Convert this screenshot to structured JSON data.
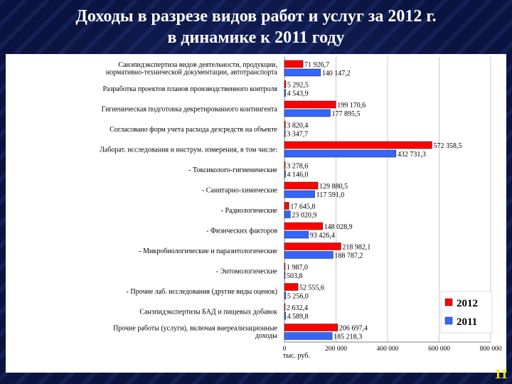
{
  "header": {
    "title_line1": "Доходы в разрезе видов работ и услуг за 2012 г.",
    "title_line2": "в динамике к 2011 году"
  },
  "page_number": "11",
  "colors": {
    "series_2012": "#ff0000",
    "series_2011": "#3366ff",
    "background": "#0b1440",
    "title": "#ffffff",
    "page_number": "#ffe600"
  },
  "chart_data": {
    "type": "bar",
    "orientation": "horizontal",
    "title": "",
    "xlabel": "тыс. руб.",
    "ylabel": "",
    "xlim": [
      0,
      800000
    ],
    "x_ticks": [
      {
        "value": 0,
        "label": "0"
      },
      {
        "value": 200000,
        "label": "200 000"
      },
      {
        "value": 400000,
        "label": "400 000"
      },
      {
        "value": 600000,
        "label": "600 000"
      },
      {
        "value": 800000,
        "label": "800 000"
      }
    ],
    "grid": true,
    "legend_position": "bottom-right",
    "categories": [
      [
        "Санэпидэкспертиза видов деятельности, продукции,",
        "нормативно-технической документации, автотранспорта"
      ],
      [
        "Разработка проектов планов производственного контроля"
      ],
      [
        "Гигиеническая подготовка декретированного контингента"
      ],
      [
        "Согласовано форм учета расхода дезсредств на объекте"
      ],
      [
        "Лаборат. исследования и инструм. измерения, в том числе:"
      ],
      [
        "- Токсиколого-гигиенические"
      ],
      [
        "- Санитарно-химические"
      ],
      [
        "-  Радиологические"
      ],
      [
        "- Физических факторов"
      ],
      [
        "- Микробиологические и паразитологические"
      ],
      [
        "- Энтомологические"
      ],
      [
        "- Прочие лаб. исследования (другие виды оценок)"
      ],
      [
        "Санэпидэкспертизы БАД и пищевых добавок"
      ],
      [
        "Прочие работы (услуги), включая внереализационные",
        "доходы"
      ]
    ],
    "series": [
      {
        "name": "2012",
        "values": [
          71926.7,
          5292.5,
          199170.6,
          3820.4,
          572358.5,
          3278.6,
          129880.5,
          17645.8,
          148028.9,
          218982.1,
          1987.0,
          52555.6,
          2632.4,
          206697.4
        ],
        "labels": [
          "71 926,7",
          "5 292,5",
          "199 170,6",
          "3 820,4",
          "572 358,5",
          "3 278,6",
          "129 880,5",
          "17 645,8",
          "148 028,9",
          "218 982,1",
          "1 987,0",
          "52 555,6",
          "2 632,4",
          "206 697,4"
        ]
      },
      {
        "name": "2011",
        "values": [
          140147.2,
          4543.9,
          177895.5,
          3347.7,
          432731.3,
          4146.0,
          117591.0,
          23020.9,
          93426.4,
          188787.2,
          503.8,
          5256.0,
          4589.8,
          185218.3
        ],
        "labels": [
          "140 147,2",
          "4 543,9",
          "177 895,5",
          "3 347,7",
          "432 731,3",
          "4 146,0",
          "117 591,0",
          "23 020,9",
          "93 426,4",
          "188 787,2",
          "503,8",
          "5 256,0",
          "4 589,8",
          "185 218,3"
        ]
      }
    ]
  }
}
